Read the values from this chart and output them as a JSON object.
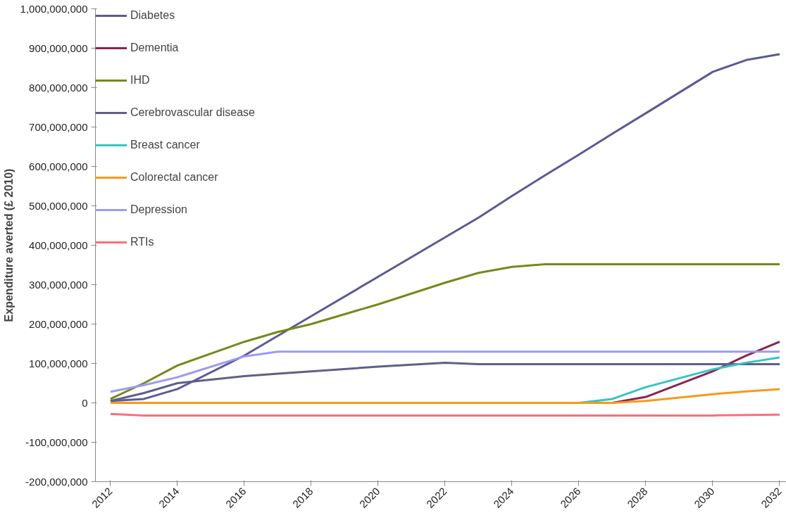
{
  "chart_data": {
    "type": "line",
    "ylabel": "Expenditure averted (£ 2010)",
    "x": [
      2012,
      2013,
      2014,
      2016,
      2017,
      2018,
      2020,
      2022,
      2023,
      2024,
      2025,
      2026,
      2027,
      2028,
      2030,
      2031,
      2032
    ],
    "xlim": [
      2011.55,
      2032.2
    ],
    "xticks": [
      2012,
      2014,
      2016,
      2018,
      2020,
      2022,
      2024,
      2026,
      2028,
      2030,
      2032
    ],
    "ylim": [
      -200000000,
      1000000000
    ],
    "yticks": [
      {
        "value": -200000000,
        "label": "-200,000,000"
      },
      {
        "value": -100000000,
        "label": "-100,000,000"
      },
      {
        "value": 0,
        "label": "0"
      },
      {
        "value": 100000000,
        "label": "100,000,000"
      },
      {
        "value": 200000000,
        "label": "200,000,000"
      },
      {
        "value": 300000000,
        "label": "300,000,000"
      },
      {
        "value": 400000000,
        "label": "400,000,000"
      },
      {
        "value": 500000000,
        "label": "500,000,000"
      },
      {
        "value": 600000000,
        "label": "600,000,000"
      },
      {
        "value": 700000000,
        "label": "700,000,000"
      },
      {
        "value": 800000000,
        "label": "800,000,000"
      },
      {
        "value": 900000000,
        "label": "900,000,000"
      },
      {
        "value": 1000000000,
        "label": "1,000,000,000"
      }
    ],
    "grid": false,
    "legend": "top left",
    "marker": "none",
    "line_style": "solid",
    "series": [
      {
        "name": "Diabetes",
        "color": "#5a5a96",
        "values": [
          5000000,
          10000000,
          35000000,
          120000000,
          170000000,
          220000000,
          320000000,
          420000000,
          470000000,
          525000000,
          578000000,
          630000000,
          683000000,
          735000000,
          840000000,
          870000000,
          885000000
        ]
      },
      {
        "name": "Dementia",
        "color": "#8b2252",
        "values": [
          null,
          null,
          null,
          null,
          null,
          null,
          null,
          null,
          null,
          null,
          null,
          null,
          0,
          15000000,
          80000000,
          120000000,
          155000000
        ]
      },
      {
        "name": "IHD",
        "color": "#77881b",
        "values": [
          10000000,
          50000000,
          95000000,
          155000000,
          180000000,
          200000000,
          250000000,
          305000000,
          330000000,
          345000000,
          352000000,
          352000000,
          352000000,
          352000000,
          352000000,
          352000000,
          352000000
        ]
      },
      {
        "name": "Cerebrovascular disease",
        "color": "#5f5f88",
        "values": [
          5000000,
          25000000,
          50000000,
          68000000,
          74000000,
          80000000,
          92000000,
          102000000,
          98000000,
          98000000,
          98000000,
          98000000,
          98000000,
          98000000,
          98000000,
          98000000,
          98000000
        ]
      },
      {
        "name": "Breast cancer",
        "color": "#33c4c4",
        "values": [
          null,
          null,
          null,
          null,
          null,
          null,
          null,
          null,
          null,
          null,
          null,
          0,
          10000000,
          40000000,
          85000000,
          102000000,
          115000000
        ]
      },
      {
        "name": "Colorectal cancer",
        "color": "#f59a1a",
        "values": [
          0,
          0,
          0,
          0,
          0,
          0,
          0,
          0,
          0,
          0,
          0,
          0,
          0,
          5000000,
          22000000,
          29000000,
          35000000
        ]
      },
      {
        "name": "Depression",
        "color": "#9b9bf5",
        "values": [
          28000000,
          45000000,
          65000000,
          118000000,
          130000000,
          130000000,
          130000000,
          130000000,
          130000000,
          130000000,
          130000000,
          130000000,
          130000000,
          130000000,
          130000000,
          130000000,
          130000000
        ]
      },
      {
        "name": "RTIs",
        "color": "#f8707a",
        "values": [
          -28000000,
          -32000000,
          -32000000,
          -32000000,
          -32000000,
          -32000000,
          -32000000,
          -32000000,
          -32000000,
          -32000000,
          -32000000,
          -32000000,
          -32000000,
          -32000000,
          -32000000,
          -31000000,
          -30000000
        ]
      }
    ]
  }
}
